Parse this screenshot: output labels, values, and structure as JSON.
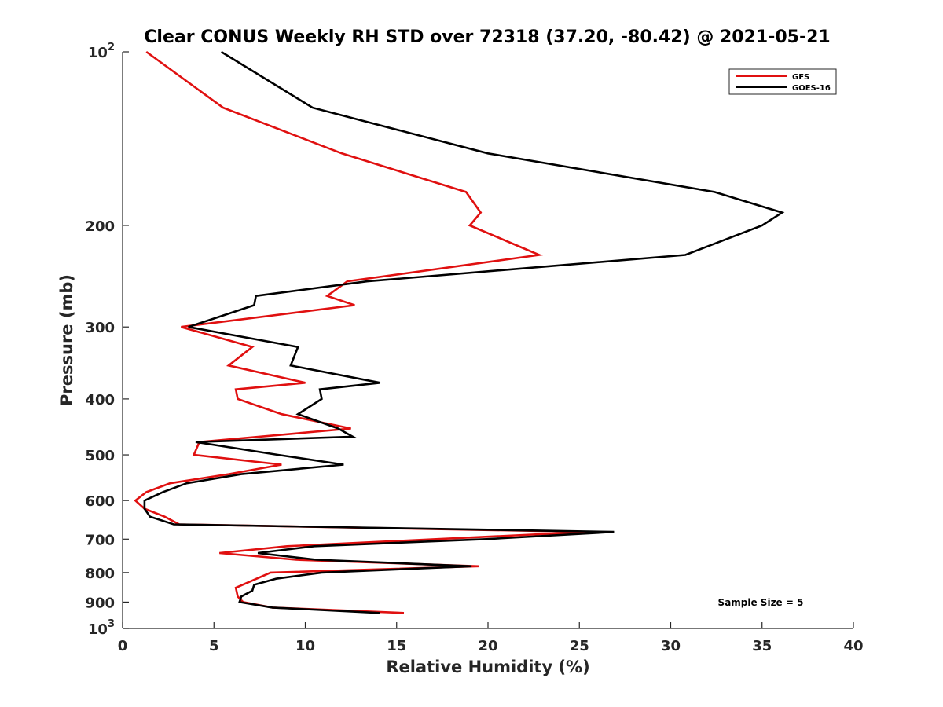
{
  "chart_data": {
    "type": "line",
    "title": "Clear CONUS Weekly RH STD over 72318 (37.20, -80.42) @ 2021-05-21",
    "xlabel": "Relative Humidity (%)",
    "ylabel": "Pressure (mb)",
    "xlim": [
      0,
      40
    ],
    "ylim": [
      100,
      1000
    ],
    "yscale": "log",
    "y_reversed": true,
    "grid": false,
    "legend_position": "top-right",
    "x_ticks": [
      0,
      5,
      10,
      15,
      20,
      25,
      30,
      35,
      40
    ],
    "y_ticks": [
      {
        "value": 100,
        "base": "10",
        "exp": "2"
      },
      {
        "value": 200,
        "label": "200"
      },
      {
        "value": 300,
        "label": "300"
      },
      {
        "value": 400,
        "label": "400"
      },
      {
        "value": 500,
        "label": "500"
      },
      {
        "value": 600,
        "label": "600"
      },
      {
        "value": 700,
        "label": "700"
      },
      {
        "value": 800,
        "label": "800"
      },
      {
        "value": 900,
        "label": "900"
      },
      {
        "value": 1000,
        "base": "10",
        "exp": "3"
      }
    ],
    "annotation": "Sample Size = 5",
    "series": [
      {
        "name": "GFS",
        "color": "#e01010",
        "points": [
          [
            1.3,
            100
          ],
          [
            5.5,
            125
          ],
          [
            12,
            150
          ],
          [
            18.8,
            175
          ],
          [
            19.6,
            190
          ],
          [
            19.0,
            200
          ],
          [
            22.8,
            225
          ],
          [
            12.3,
            250
          ],
          [
            11.2,
            265
          ],
          [
            12.7,
            275
          ],
          [
            3.2,
            300
          ],
          [
            7.1,
            325
          ],
          [
            5.8,
            350
          ],
          [
            10.0,
            375
          ],
          [
            6.2,
            385
          ],
          [
            6.3,
            400
          ],
          [
            8.7,
            425
          ],
          [
            12.5,
            450
          ],
          [
            4.2,
            475
          ],
          [
            3.9,
            500
          ],
          [
            8.7,
            520
          ],
          [
            5.8,
            540
          ],
          [
            2.6,
            560
          ],
          [
            1.3,
            580
          ],
          [
            0.7,
            600
          ],
          [
            1.2,
            620
          ],
          [
            2.3,
            640
          ],
          [
            3.1,
            660
          ],
          [
            25.5,
            680
          ],
          [
            9.0,
            720
          ],
          [
            5.3,
            740
          ],
          [
            9.5,
            760
          ],
          [
            19.5,
            780
          ],
          [
            8.1,
            800
          ],
          [
            6.2,
            850
          ],
          [
            6.3,
            880
          ],
          [
            6.6,
            900
          ],
          [
            8.2,
            920
          ],
          [
            15.4,
            940
          ]
        ]
      },
      {
        "name": "GOES-16",
        "color": "#000000",
        "points": [
          [
            5.4,
            100
          ],
          [
            10.4,
            125
          ],
          [
            20.0,
            150
          ],
          [
            32.4,
            175
          ],
          [
            36.1,
            190
          ],
          [
            35.0,
            200
          ],
          [
            30.8,
            225
          ],
          [
            13.4,
            250
          ],
          [
            7.3,
            265
          ],
          [
            7.2,
            275
          ],
          [
            3.6,
            300
          ],
          [
            9.6,
            325
          ],
          [
            9.2,
            350
          ],
          [
            14.1,
            375
          ],
          [
            10.8,
            385
          ],
          [
            10.9,
            400
          ],
          [
            9.6,
            425
          ],
          [
            11.8,
            450
          ],
          [
            12.6,
            465
          ],
          [
            4.0,
            475
          ],
          [
            8.5,
            500
          ],
          [
            12.1,
            520
          ],
          [
            6.5,
            540
          ],
          [
            3.5,
            560
          ],
          [
            2.2,
            580
          ],
          [
            1.2,
            600
          ],
          [
            1.2,
            620
          ],
          [
            1.5,
            640
          ],
          [
            2.8,
            660
          ],
          [
            26.9,
            680
          ],
          [
            19.9,
            700
          ],
          [
            10.5,
            720
          ],
          [
            7.4,
            740
          ],
          [
            10.6,
            760
          ],
          [
            19.1,
            780
          ],
          [
            10.9,
            800
          ],
          [
            8.4,
            820
          ],
          [
            7.2,
            840
          ],
          [
            7.1,
            860
          ],
          [
            6.5,
            880
          ],
          [
            6.4,
            900
          ],
          [
            8.2,
            920
          ],
          [
            14.1,
            940
          ]
        ]
      }
    ]
  }
}
